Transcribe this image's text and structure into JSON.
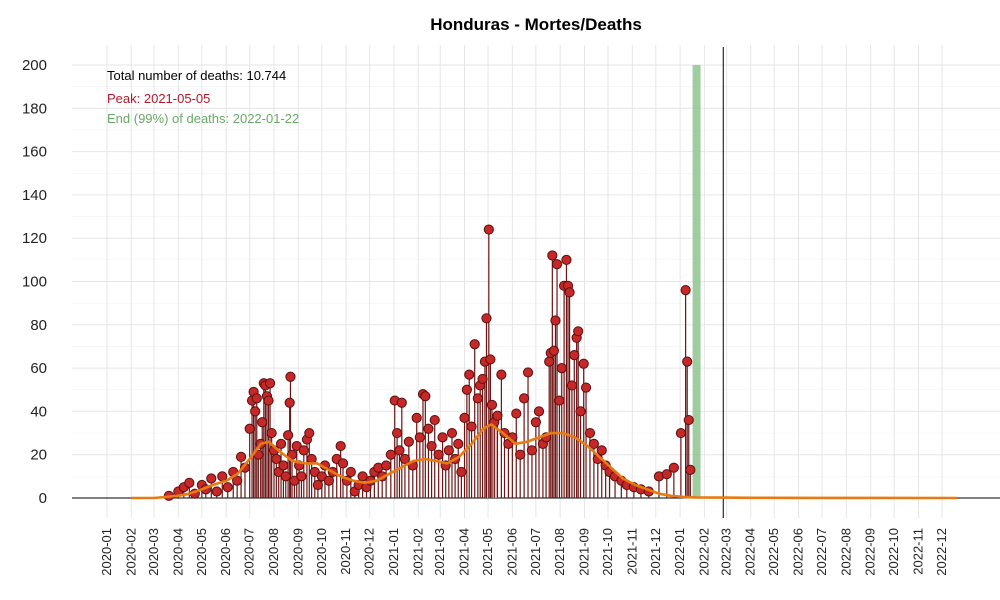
{
  "chart_data": {
    "type": "scatter",
    "title": "Honduras - Mortes/Deaths",
    "xlabel": "",
    "ylabel": "",
    "ylim": [
      0,
      200
    ],
    "y_ticks": [
      0,
      20,
      40,
      60,
      80,
      100,
      120,
      140,
      160,
      180,
      200
    ],
    "x_ticks": [
      "2020-01",
      "2020-02",
      "2020-03",
      "2020-04",
      "2020-05",
      "2020-06",
      "2020-07",
      "2020-08",
      "2020-09",
      "2020-10",
      "2020-11",
      "2020-12",
      "2021-01",
      "2021-02",
      "2021-03",
      "2021-04",
      "2021-05",
      "2021-06",
      "2021-07",
      "2021-08",
      "2021-09",
      "2021-10",
      "2021-11",
      "2021-12",
      "2022-01",
      "2022-02",
      "2022-03",
      "2022-04",
      "2022-05",
      "2022-06",
      "2022-07",
      "2022-08",
      "2022-09",
      "2022-10",
      "2022-11",
      "2022-12"
    ],
    "grid": true,
    "annotations": {
      "total": "Total number of deaths: 10.744",
      "peak": "Peak: 2021-05-05",
      "end": "End (99%) of deaths: 2022-01-22"
    },
    "peak_date": "2021-05-05",
    "end_date": "2022-01-22",
    "today_date": "2022-02-25",
    "observed_deaths": [
      [
        "2020-03-20",
        1
      ],
      [
        "2020-04-01",
        3
      ],
      [
        "2020-04-08",
        5
      ],
      [
        "2020-04-15",
        7
      ],
      [
        "2020-04-22",
        2
      ],
      [
        "2020-05-01",
        6
      ],
      [
        "2020-05-06",
        4
      ],
      [
        "2020-05-13",
        9
      ],
      [
        "2020-05-20",
        3
      ],
      [
        "2020-05-27",
        10
      ],
      [
        "2020-06-03",
        5
      ],
      [
        "2020-06-10",
        12
      ],
      [
        "2020-06-15",
        8
      ],
      [
        "2020-06-20",
        19
      ],
      [
        "2020-06-25",
        14
      ],
      [
        "2020-07-01",
        32
      ],
      [
        "2020-07-04",
        45
      ],
      [
        "2020-07-06",
        49
      ],
      [
        "2020-07-08",
        40
      ],
      [
        "2020-07-10",
        46
      ],
      [
        "2020-07-12",
        20
      ],
      [
        "2020-07-15",
        25
      ],
      [
        "2020-07-17",
        35
      ],
      [
        "2020-07-19",
        53
      ],
      [
        "2020-07-21",
        52
      ],
      [
        "2020-07-23",
        47
      ],
      [
        "2020-07-25",
        45
      ],
      [
        "2020-07-27",
        53
      ],
      [
        "2020-07-29",
        30
      ],
      [
        "2020-08-01",
        22
      ],
      [
        "2020-08-04",
        18
      ],
      [
        "2020-08-07",
        12
      ],
      [
        "2020-08-10",
        25
      ],
      [
        "2020-08-13",
        15
      ],
      [
        "2020-08-16",
        10
      ],
      [
        "2020-08-19",
        29
      ],
      [
        "2020-08-21",
        44
      ],
      [
        "2020-08-22",
        56
      ],
      [
        "2020-08-24",
        20
      ],
      [
        "2020-08-27",
        8
      ],
      [
        "2020-08-30",
        24
      ],
      [
        "2020-09-02",
        15
      ],
      [
        "2020-09-05",
        10
      ],
      [
        "2020-09-08",
        22
      ],
      [
        "2020-09-12",
        27
      ],
      [
        "2020-09-15",
        30
      ],
      [
        "2020-09-18",
        18
      ],
      [
        "2020-09-22",
        12
      ],
      [
        "2020-09-26",
        6
      ],
      [
        "2020-10-01",
        10
      ],
      [
        "2020-10-05",
        15
      ],
      [
        "2020-10-10",
        8
      ],
      [
        "2020-10-15",
        12
      ],
      [
        "2020-10-20",
        18
      ],
      [
        "2020-10-25",
        24
      ],
      [
        "2020-10-28",
        16
      ],
      [
        "2020-11-02",
        8
      ],
      [
        "2020-11-07",
        12
      ],
      [
        "2020-11-12",
        3
      ],
      [
        "2020-11-17",
        6
      ],
      [
        "2020-11-22",
        10
      ],
      [
        "2020-11-27",
        5
      ],
      [
        "2020-12-02",
        8
      ],
      [
        "2020-12-07",
        12
      ],
      [
        "2020-12-12",
        14
      ],
      [
        "2020-12-17",
        10
      ],
      [
        "2020-12-22",
        15
      ],
      [
        "2020-12-28",
        20
      ],
      [
        "2021-01-02",
        45
      ],
      [
        "2021-01-05",
        30
      ],
      [
        "2021-01-08",
        22
      ],
      [
        "2021-01-11",
        44
      ],
      [
        "2021-01-15",
        18
      ],
      [
        "2021-01-20",
        26
      ],
      [
        "2021-01-25",
        15
      ],
      [
        "2021-01-30",
        37
      ],
      [
        "2021-02-03",
        28
      ],
      [
        "2021-02-07",
        48
      ],
      [
        "2021-02-10",
        47
      ],
      [
        "2021-02-14",
        32
      ],
      [
        "2021-02-18",
        24
      ],
      [
        "2021-02-22",
        36
      ],
      [
        "2021-02-27",
        20
      ],
      [
        "2021-03-04",
        28
      ],
      [
        "2021-03-08",
        15
      ],
      [
        "2021-03-12",
        22
      ],
      [
        "2021-03-16",
        30
      ],
      [
        "2021-03-20",
        18
      ],
      [
        "2021-03-24",
        25
      ],
      [
        "2021-03-28",
        12
      ],
      [
        "2021-04-01",
        37
      ],
      [
        "2021-04-04",
        50
      ],
      [
        "2021-04-07",
        57
      ],
      [
        "2021-04-10",
        33
      ],
      [
        "2021-04-14",
        71
      ],
      [
        "2021-04-18",
        46
      ],
      [
        "2021-04-21",
        52
      ],
      [
        "2021-04-24",
        55
      ],
      [
        "2021-04-27",
        63
      ],
      [
        "2021-04-29",
        83
      ],
      [
        "2021-05-02",
        124
      ],
      [
        "2021-05-04",
        64
      ],
      [
        "2021-05-06",
        43
      ],
      [
        "2021-05-09",
        35
      ],
      [
        "2021-05-13",
        38
      ],
      [
        "2021-05-18",
        57
      ],
      [
        "2021-05-22",
        30
      ],
      [
        "2021-05-27",
        25
      ],
      [
        "2021-06-01",
        28
      ],
      [
        "2021-06-06",
        39
      ],
      [
        "2021-06-11",
        20
      ],
      [
        "2021-06-16",
        46
      ],
      [
        "2021-06-21",
        58
      ],
      [
        "2021-06-26",
        22
      ],
      [
        "2021-07-01",
        35
      ],
      [
        "2021-07-05",
        40
      ],
      [
        "2021-07-10",
        25
      ],
      [
        "2021-07-14",
        28
      ],
      [
        "2021-07-18",
        63
      ],
      [
        "2021-07-20",
        67
      ],
      [
        "2021-07-22",
        112
      ],
      [
        "2021-07-24",
        68
      ],
      [
        "2021-07-26",
        82
      ],
      [
        "2021-07-28",
        108
      ],
      [
        "2021-07-31",
        45
      ],
      [
        "2021-08-03",
        60
      ],
      [
        "2021-08-06",
        98
      ],
      [
        "2021-08-09",
        110
      ],
      [
        "2021-08-11",
        98
      ],
      [
        "2021-08-13",
        95
      ],
      [
        "2021-08-16",
        52
      ],
      [
        "2021-08-19",
        66
      ],
      [
        "2021-08-22",
        74
      ],
      [
        "2021-08-24",
        77
      ],
      [
        "2021-08-27",
        40
      ],
      [
        "2021-08-31",
        62
      ],
      [
        "2021-09-03",
        51
      ],
      [
        "2021-09-08",
        30
      ],
      [
        "2021-09-13",
        25
      ],
      [
        "2021-09-18",
        18
      ],
      [
        "2021-09-23",
        22
      ],
      [
        "2021-09-28",
        15
      ],
      [
        "2021-10-03",
        12
      ],
      [
        "2021-10-10",
        10
      ],
      [
        "2021-10-18",
        8
      ],
      [
        "2021-10-25",
        6
      ],
      [
        "2021-11-03",
        5
      ],
      [
        "2021-11-12",
        4
      ],
      [
        "2021-11-22",
        3
      ],
      [
        "2021-12-05",
        10
      ],
      [
        "2021-12-15",
        11
      ],
      [
        "2021-12-24",
        14
      ],
      [
        "2022-01-02",
        30
      ],
      [
        "2022-01-08",
        96
      ],
      [
        "2022-01-10",
        63
      ],
      [
        "2022-01-12",
        36
      ],
      [
        "2022-01-14",
        13
      ]
    ],
    "smoothed_curve": [
      [
        "2020-02-01",
        0
      ],
      [
        "2020-03-01",
        0
      ],
      [
        "2020-04-01",
        1
      ],
      [
        "2020-04-15",
        2
      ],
      [
        "2020-05-01",
        4
      ],
      [
        "2020-05-15",
        6
      ],
      [
        "2020-06-01",
        8
      ],
      [
        "2020-06-15",
        11
      ],
      [
        "2020-07-01",
        18
      ],
      [
        "2020-07-15",
        25
      ],
      [
        "2020-07-25",
        26
      ],
      [
        "2020-08-10",
        21
      ],
      [
        "2020-08-25",
        17
      ],
      [
        "2020-09-10",
        16
      ],
      [
        "2020-09-25",
        16
      ],
      [
        "2020-10-10",
        13
      ],
      [
        "2020-10-25",
        10
      ],
      [
        "2020-11-10",
        8
      ],
      [
        "2020-11-25",
        7
      ],
      [
        "2020-12-10",
        8
      ],
      [
        "2020-12-25",
        11
      ],
      [
        "2021-01-10",
        14
      ],
      [
        "2021-01-25",
        17
      ],
      [
        "2021-02-10",
        18
      ],
      [
        "2021-02-25",
        17
      ],
      [
        "2021-03-10",
        16
      ],
      [
        "2021-03-25",
        19
      ],
      [
        "2021-04-10",
        25
      ],
      [
        "2021-04-25",
        32
      ],
      [
        "2021-05-05",
        34
      ],
      [
        "2021-05-20",
        30
      ],
      [
        "2021-06-05",
        25
      ],
      [
        "2021-06-20",
        26
      ],
      [
        "2021-07-05",
        28
      ],
      [
        "2021-07-20",
        30
      ],
      [
        "2021-08-05",
        30
      ],
      [
        "2021-08-20",
        28
      ],
      [
        "2021-09-05",
        24
      ],
      [
        "2021-09-20",
        19
      ],
      [
        "2021-10-05",
        14
      ],
      [
        "2021-10-20",
        9
      ],
      [
        "2021-11-05",
        6
      ],
      [
        "2021-11-20",
        4
      ],
      [
        "2021-12-05",
        2
      ],
      [
        "2021-12-20",
        1
      ],
      [
        "2022-01-05",
        0.5
      ],
      [
        "2022-01-20",
        0.3
      ],
      [
        "2022-02-25",
        0.2
      ],
      [
        "2022-04-01",
        0.1
      ],
      [
        "2022-07-01",
        0.05
      ],
      [
        "2022-12-20",
        0
      ]
    ]
  }
}
